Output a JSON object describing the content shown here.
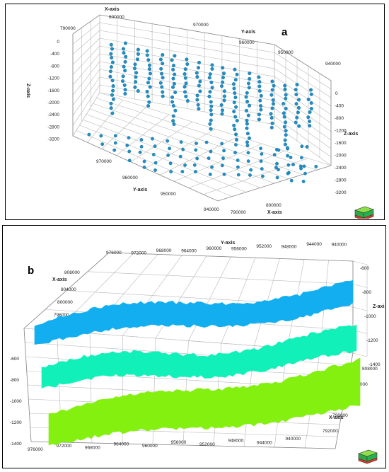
{
  "panels": [
    {
      "id": "a",
      "label": "a",
      "xaxis_label": "X-axis",
      "yaxis_label": "Y-axis",
      "zaxis_label": "Z-axis",
      "x_ticks_top": [
        "790000",
        "800000"
      ],
      "y_ticks_top": [
        "970000",
        "960000",
        "950000",
        "940000"
      ],
      "z_ticks_left": [
        "0",
        "-400",
        "-800",
        "-1200",
        "-1600",
        "-2000",
        "-2400",
        "-2800",
        "-3200"
      ],
      "z_ticks_right": [
        "0",
        "-400",
        "-800",
        "-1200",
        "-1600",
        "-2000",
        "-2400",
        "-2800",
        "-3200"
      ],
      "y_ticks_bottom": [
        "970000",
        "960000",
        "950000",
        "940000"
      ],
      "x_ticks_bottom": [
        "790000",
        "800000"
      ]
    },
    {
      "id": "b",
      "label": "b",
      "xaxis_label": "X-axis",
      "yaxis_label": "Y-axis",
      "zaxis_label": "Z-axis",
      "y_ticks_top": [
        "976000",
        "972000",
        "968000",
        "964000",
        "960000",
        "956000",
        "952000",
        "948000",
        "944000",
        "940000"
      ],
      "x_ticks_left": [
        "808000",
        "804000",
        "800000",
        "796000",
        "792000"
      ],
      "z_ticks_right": [
        "-600",
        "-800",
        "-1000",
        "-1200",
        "-1400"
      ],
      "z_ticks_left": [
        "-600",
        "-800",
        "-1000",
        "-1200",
        "-1400"
      ],
      "y_ticks_bottom": [
        "976000",
        "972000",
        "968000",
        "964000",
        "960000",
        "956000",
        "952000",
        "948000",
        "944000",
        "940000"
      ],
      "x_ticks_right": [
        "808000",
        "804000",
        "800000",
        "796000",
        "792000"
      ]
    }
  ],
  "chart_data": [
    {
      "type": "scatter",
      "panel": "a",
      "description_3d": true,
      "xlabel": "X-axis",
      "ylabel": "Y-axis",
      "zlabel": "Z-axis",
      "xlim": [
        788000,
        804000
      ],
      "ylim": [
        938000,
        978000
      ],
      "zlim": [
        -3200,
        0
      ],
      "point_color": "#1e90c8",
      "grid": true
    },
    {
      "type": "area",
      "panel": "b",
      "description_3d": true,
      "xlabel": "X-axis",
      "ylabel": "Y-axis",
      "zlabel": "Z-axis",
      "xlim": [
        792000,
        808000
      ],
      "ylim": [
        940000,
        976000
      ],
      "zlim": [
        -1400,
        -600
      ],
      "surface_colors": [
        "#12aef0",
        "#10f0b8",
        "#84f010"
      ],
      "grid": true
    }
  ]
}
